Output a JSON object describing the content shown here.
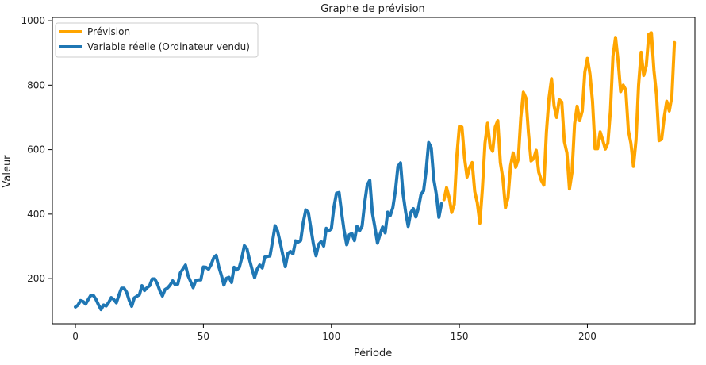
{
  "chart_data": {
    "type": "line",
    "title": "Graphe de prévision",
    "xlabel": "Période",
    "ylabel": "Valeur",
    "xlim": [
      -9,
      242
    ],
    "ylim": [
      60,
      1010
    ],
    "xticks": [
      0,
      50,
      100,
      150,
      200
    ],
    "yticks": [
      200,
      400,
      600,
      800,
      1000
    ],
    "grid": false,
    "legend_position": "top-left",
    "series": [
      {
        "name": "Prévision",
        "color": "#ffa500",
        "x_start": 144,
        "values": [
          445,
          482,
          452,
          405,
          430,
          580,
          672,
          670,
          575,
          515,
          545,
          560,
          470,
          435,
          372,
          480,
          620,
          682,
          610,
          595,
          670,
          690,
          560,
          510,
          420,
          450,
          550,
          590,
          545,
          570,
          700,
          778,
          760,
          650,
          565,
          572,
          598,
          530,
          505,
          490,
          655,
          760,
          820,
          735,
          700,
          755,
          748,
          625,
          590,
          478,
          530,
          680,
          735,
          690,
          720,
          840,
          883,
          835,
          750,
          603,
          603,
          655,
          630,
          602,
          620,
          720,
          890,
          948,
          875,
          780,
          800,
          785,
          660,
          620,
          548,
          630,
          800,
          902,
          830,
          860,
          958,
          962,
          845,
          770,
          628,
          632,
          700,
          750,
          720,
          765,
          932
        ]
      },
      {
        "name": "Variable réelle (Ordinateur vendu)",
        "color": "#1f77b4",
        "x_start": 0,
        "values": [
          112,
          118,
          132,
          129,
          121,
          135,
          148,
          148,
          136,
          119,
          104,
          118,
          115,
          126,
          141,
          135,
          125,
          149,
          170,
          170,
          158,
          133,
          114,
          140,
          145,
          150,
          178,
          163,
          172,
          178,
          199,
          199,
          184,
          162,
          146,
          166,
          171,
          180,
          193,
          181,
          183,
          218,
          230,
          242,
          209,
          191,
          172,
          194,
          196,
          196,
          236,
          235,
          229,
          243,
          264,
          272,
          237,
          211,
          180,
          201,
          204,
          188,
          235,
          227,
          234,
          264,
          302,
          293,
          259,
          229,
          203,
          229,
          242,
          233,
          267,
          269,
          270,
          315,
          364,
          347,
          312,
          274,
          237,
          278,
          284,
          277,
          317,
          313,
          318,
          374,
          413,
          405,
          355,
          306,
          271,
          306,
          315,
          301,
          356,
          348,
          355,
          422,
          465,
          467,
          404,
          347,
          305,
          336,
          340,
          318,
          362,
          348,
          363,
          435,
          491,
          505,
          404,
          359,
          310,
          337,
          360,
          342,
          406,
          396,
          420,
          472,
          548,
          559,
          463,
          407,
          362,
          405,
          417,
          391,
          419,
          461,
          472,
          535,
          622,
          606,
          508,
          461,
          390,
          432
        ]
      }
    ]
  }
}
